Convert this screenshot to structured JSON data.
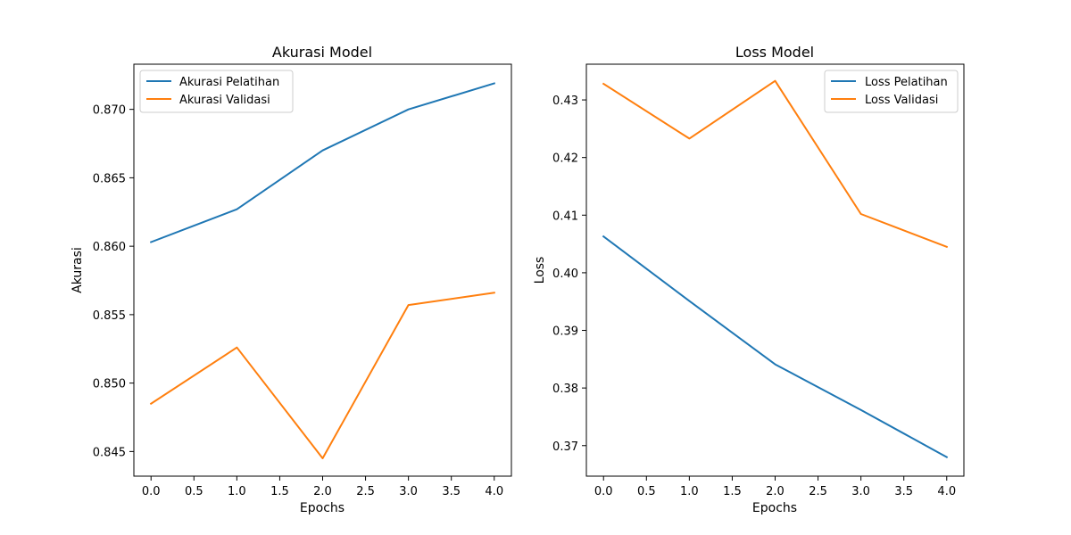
{
  "figure": {
    "background": "#ffffff"
  },
  "chart_data": [
    {
      "type": "line",
      "title": "Akurasi Model",
      "xlabel": "Epochs",
      "ylabel": "Akurasi",
      "x": [
        0,
        1,
        2,
        3,
        4
      ],
      "xlim": [
        -0.2,
        4.2
      ],
      "ylim": [
        0.8432,
        0.8733
      ],
      "xticks": [
        0.0,
        0.5,
        1.0,
        1.5,
        2.0,
        2.5,
        3.0,
        3.5,
        4.0
      ],
      "xtick_labels": [
        "0.0",
        "0.5",
        "1.0",
        "1.5",
        "2.0",
        "2.5",
        "3.0",
        "3.5",
        "4.0"
      ],
      "yticks": [
        0.845,
        0.85,
        0.855,
        0.86,
        0.865,
        0.87
      ],
      "ytick_labels": [
        "0.845",
        "0.850",
        "0.855",
        "0.860",
        "0.865",
        "0.870"
      ],
      "grid": false,
      "legend_position": "upper left",
      "series": [
        {
          "name": "Akurasi Pelatihan",
          "color": "#1f77b4",
          "values": [
            0.8603,
            0.8627,
            0.867,
            0.87,
            0.8719
          ]
        },
        {
          "name": "Akurasi Validasi",
          "color": "#ff7f0e",
          "values": [
            0.8485,
            0.8526,
            0.8445,
            0.8557,
            0.8566
          ]
        }
      ]
    },
    {
      "type": "line",
      "title": "Loss Model",
      "xlabel": "Epochs",
      "ylabel": "Loss",
      "x": [
        0,
        1,
        2,
        3,
        4
      ],
      "xlim": [
        -0.2,
        4.2
      ],
      "ylim": [
        0.3647,
        0.4362
      ],
      "xticks": [
        0.0,
        0.5,
        1.0,
        1.5,
        2.0,
        2.5,
        3.0,
        3.5,
        4.0
      ],
      "xtick_labels": [
        "0.0",
        "0.5",
        "1.0",
        "1.5",
        "2.0",
        "2.5",
        "3.0",
        "3.5",
        "4.0"
      ],
      "yticks": [
        0.37,
        0.38,
        0.39,
        0.4,
        0.41,
        0.42,
        0.43
      ],
      "ytick_labels": [
        "0.37",
        "0.38",
        "0.39",
        "0.40",
        "0.41",
        "0.42",
        "0.43"
      ],
      "grid": false,
      "legend_position": "upper right",
      "series": [
        {
          "name": "Loss Pelatihan",
          "color": "#1f77b4",
          "values": [
            0.4063,
            0.3951,
            0.3841,
            0.3762,
            0.368
          ]
        },
        {
          "name": "Loss Validasi",
          "color": "#ff7f0e",
          "values": [
            0.4328,
            0.4233,
            0.4333,
            0.4102,
            0.4045
          ]
        }
      ]
    }
  ]
}
